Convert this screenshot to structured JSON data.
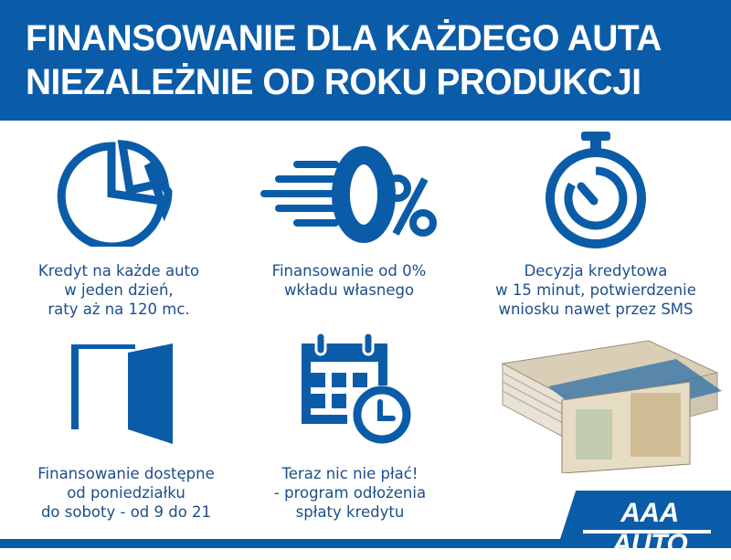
{
  "header": {
    "line1": "FINANSOWANIE DLA KAŻDEGO AUTA",
    "line2": "NIEZALEŻNIE OD ROKU PRODUKCJI"
  },
  "colors": {
    "brand_blue": "#0b5ca8",
    "text_blue": "#1d4e89"
  },
  "features": [
    {
      "icon": "pie-chart-icon",
      "lines": [
        "Kredyt na każde auto",
        "w jeden dzień,",
        "raty aż na 120 mc."
      ]
    },
    {
      "icon": "zero-percent-icon",
      "lines": [
        "Finansowanie od 0%",
        "wkładu własnego"
      ]
    },
    {
      "icon": "stopwatch-icon",
      "lines": [
        "Decyzja kredytowa",
        "w 15 minut, potwierdzenie",
        "wniosku nawet przez SMS"
      ]
    },
    {
      "icon": "open-door-icon",
      "lines": [
        "Finansowanie dostępne",
        "od poniedziałku",
        "do soboty - od 9 do 21"
      ]
    },
    {
      "icon": "calendar-clock-icon",
      "lines": [
        "Teraz nic nie płać!",
        "- program odłożenia",
        "spłaty kredytu"
      ]
    },
    {
      "icon": "banknotes-image",
      "lines": []
    }
  ],
  "logo": {
    "text": "AAA AUTO"
  }
}
